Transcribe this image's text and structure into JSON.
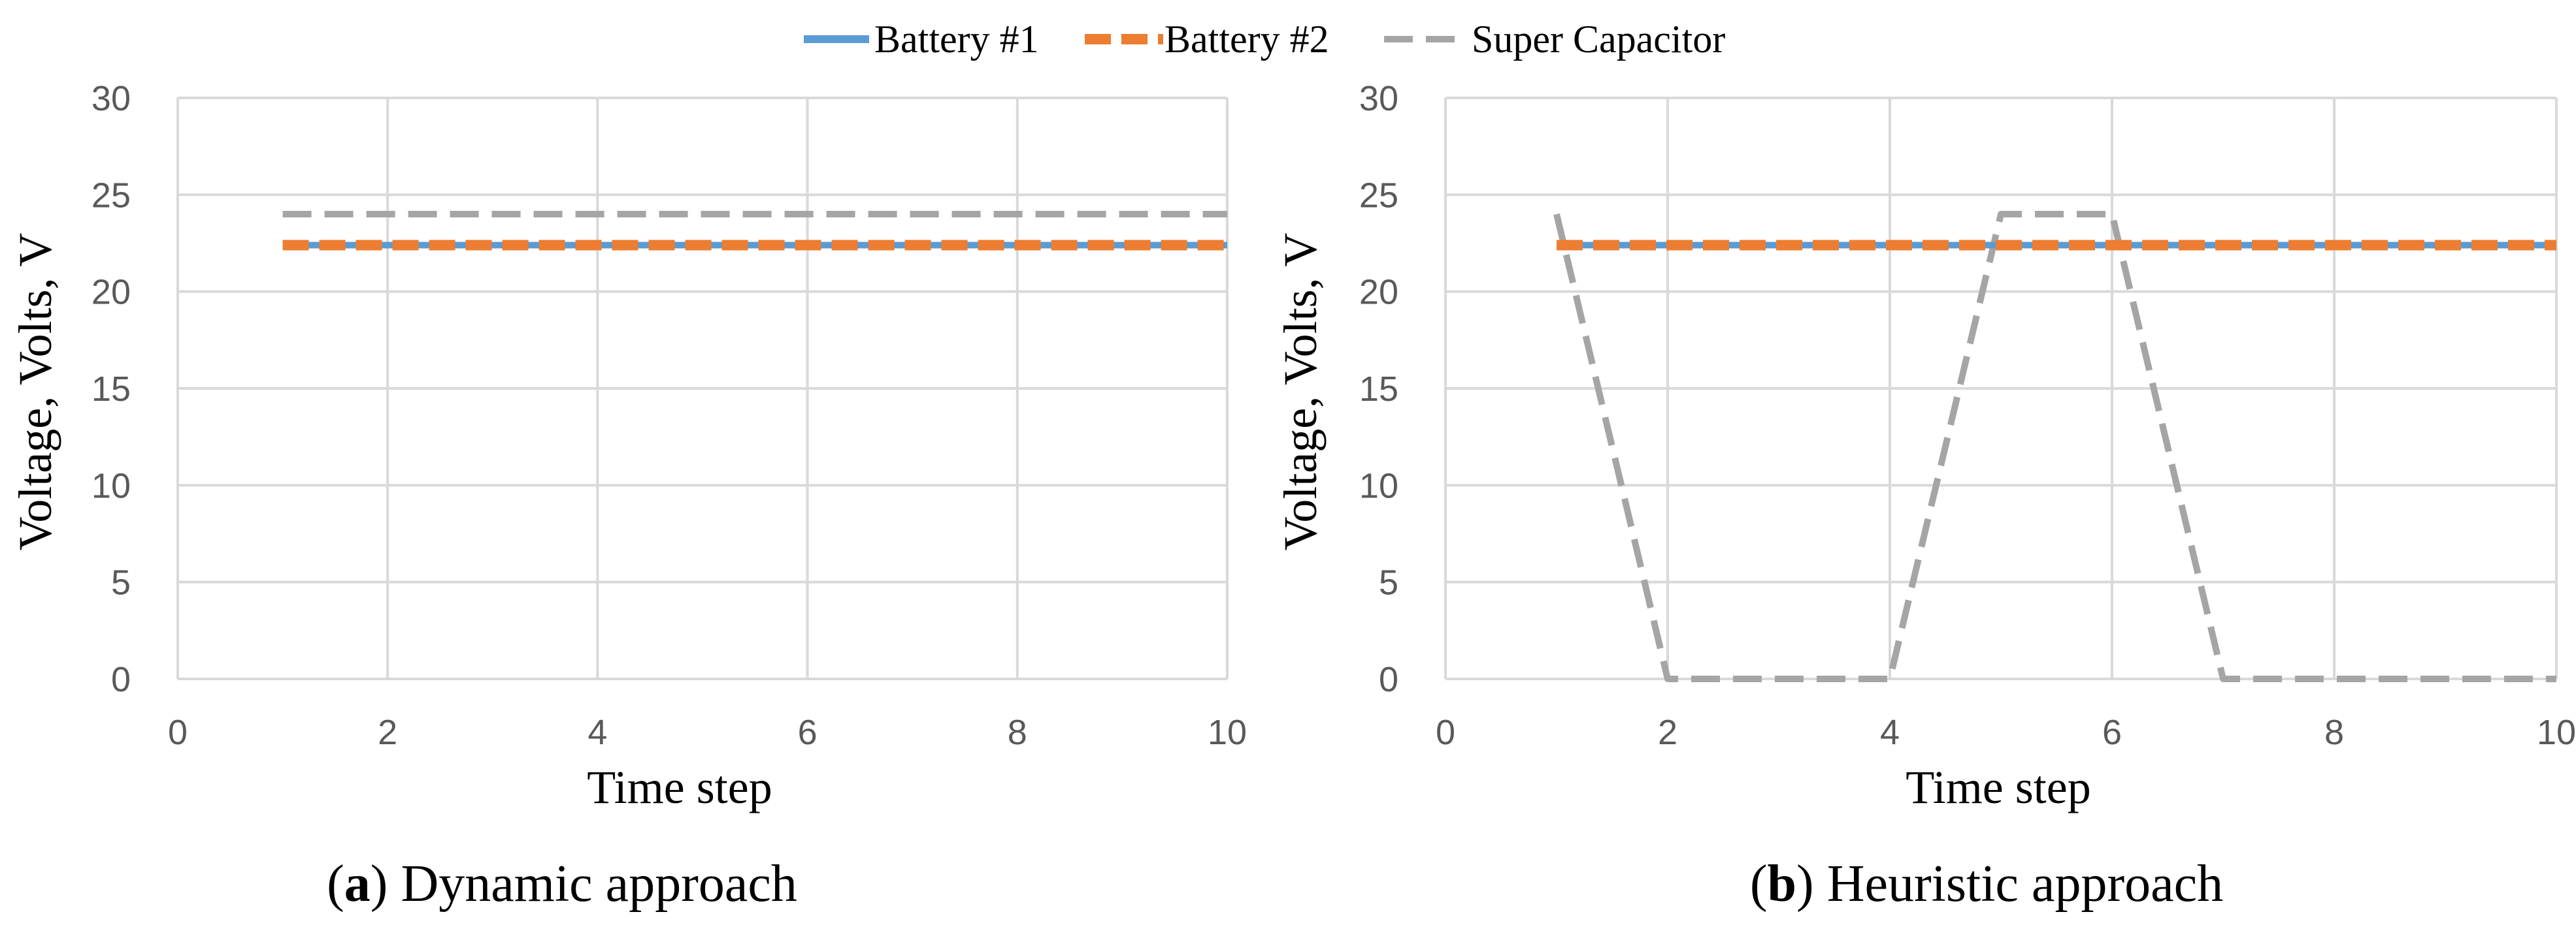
{
  "legend": [
    {
      "name": "Battery #1",
      "color": "#5b9bd5",
      "style": "solid"
    },
    {
      "name": "Battery #2",
      "color": "#ed7d31",
      "style": "dashed"
    },
    {
      "name": "Super Capacitor",
      "color": "#a5a5a5",
      "style": "dashed"
    }
  ],
  "chart_data": [
    {
      "type": "line",
      "caption_letter": "a",
      "caption_text": "Dynamic approach",
      "xlabel": "Time step",
      "ylabel": "Voltage, Volts, V",
      "xlim": [
        0,
        10
      ],
      "ylim": [
        0,
        30
      ],
      "xticks": [
        0,
        2,
        4,
        6,
        8,
        10
      ],
      "yticks": [
        0,
        5,
        10,
        15,
        20,
        25,
        30
      ],
      "grid": true,
      "legend_position": "top-center",
      "series": [
        {
          "name": "Battery #1",
          "color": "#5b9bd5",
          "x": [
            1,
            2,
            3,
            4,
            5,
            6,
            7,
            8,
            9,
            10
          ],
          "values": [
            22.4,
            22.4,
            22.4,
            22.4,
            22.4,
            22.4,
            22.4,
            22.4,
            22.4,
            22.4
          ]
        },
        {
          "name": "Battery #2",
          "color": "#ed7d31",
          "x": [
            1,
            2,
            3,
            4,
            5,
            6,
            7,
            8,
            9,
            10
          ],
          "values": [
            22.4,
            22.4,
            22.4,
            22.4,
            22.4,
            22.4,
            22.4,
            22.4,
            22.4,
            22.4
          ]
        },
        {
          "name": "Super Capacitor",
          "color": "#a5a5a5",
          "x": [
            1,
            2,
            3,
            4,
            5,
            6,
            7,
            8,
            9,
            10
          ],
          "values": [
            24,
            24,
            24,
            24,
            24,
            24,
            24,
            24,
            24,
            24
          ]
        }
      ]
    },
    {
      "type": "line",
      "caption_letter": "b",
      "caption_text": "Heuristic approach",
      "xlabel": "Time step",
      "ylabel": "Voltage, Volts, V",
      "xlim": [
        0,
        10
      ],
      "ylim": [
        0,
        30
      ],
      "xticks": [
        0,
        2,
        4,
        6,
        8,
        10
      ],
      "yticks": [
        0,
        5,
        10,
        15,
        20,
        25,
        30
      ],
      "grid": true,
      "legend_position": "top-center",
      "series": [
        {
          "name": "Battery #1",
          "color": "#5b9bd5",
          "x": [
            1,
            2,
            3,
            4,
            5,
            6,
            7,
            8,
            9,
            10
          ],
          "values": [
            22.4,
            22.4,
            22.4,
            22.4,
            22.4,
            22.4,
            22.4,
            22.4,
            22.4,
            22.4
          ]
        },
        {
          "name": "Battery #2",
          "color": "#ed7d31",
          "x": [
            1,
            2,
            3,
            4,
            5,
            6,
            7,
            8,
            9,
            10
          ],
          "values": [
            22.4,
            22.4,
            22.4,
            22.4,
            22.4,
            22.4,
            22.4,
            22.4,
            22.4,
            22.4
          ]
        },
        {
          "name": "Super Capacitor",
          "color": "#a5a5a5",
          "x": [
            1,
            2,
            3,
            4,
            5,
            6,
            7,
            8,
            9,
            10
          ],
          "values": [
            24,
            0,
            0,
            0,
            24,
            24,
            0,
            0,
            0,
            0
          ]
        }
      ]
    }
  ]
}
